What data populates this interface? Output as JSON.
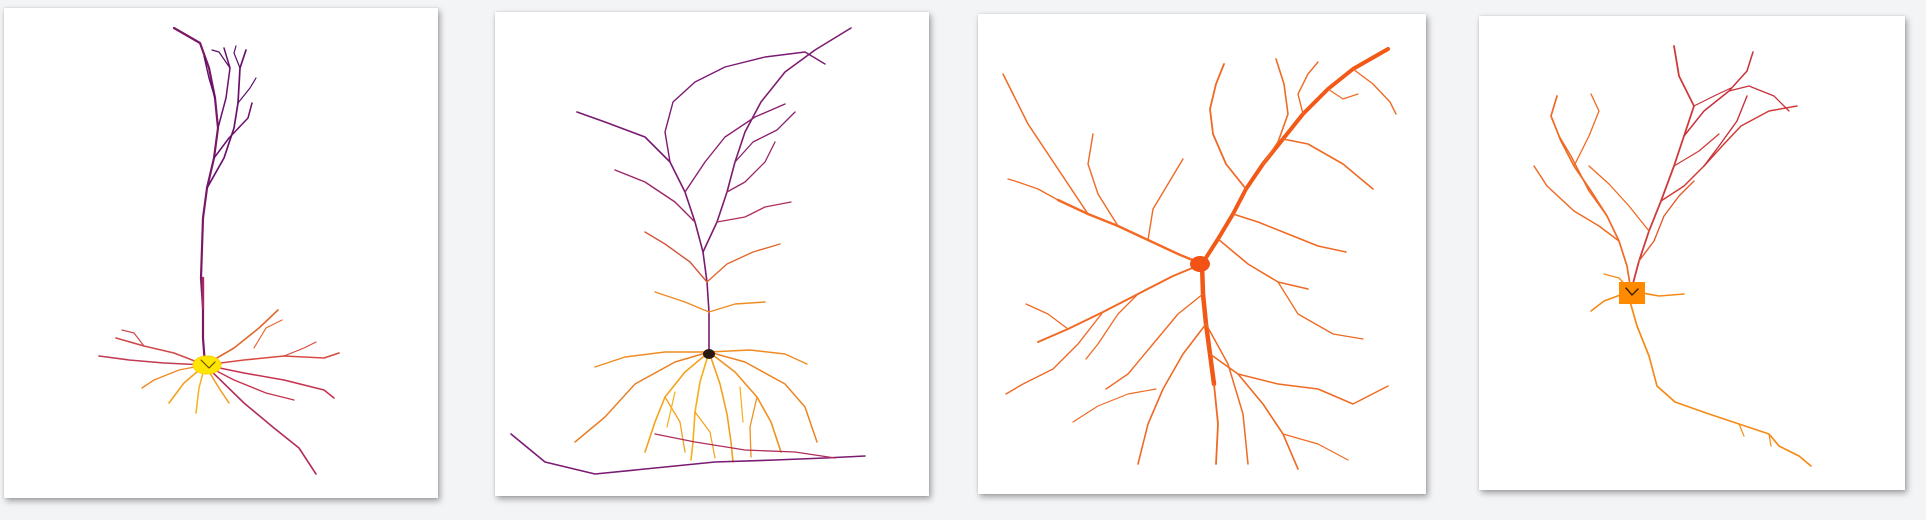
{
  "figure": {
    "panels": [
      {
        "id": "neuron-1",
        "colormap": [
          "#ffe600",
          "#f58a16",
          "#c62f53",
          "#5d0d6b"
        ]
      },
      {
        "id": "neuron-2",
        "colormap": [
          "#f6a91a",
          "#f27a1e",
          "#c8344a",
          "#6a147a"
        ]
      },
      {
        "id": "neuron-3",
        "colormap": [
          "#ff5a0a",
          "#f06a24"
        ]
      },
      {
        "id": "neuron-4",
        "colormap": [
          "#ff8a00",
          "#f1602a",
          "#d43838"
        ]
      }
    ]
  }
}
